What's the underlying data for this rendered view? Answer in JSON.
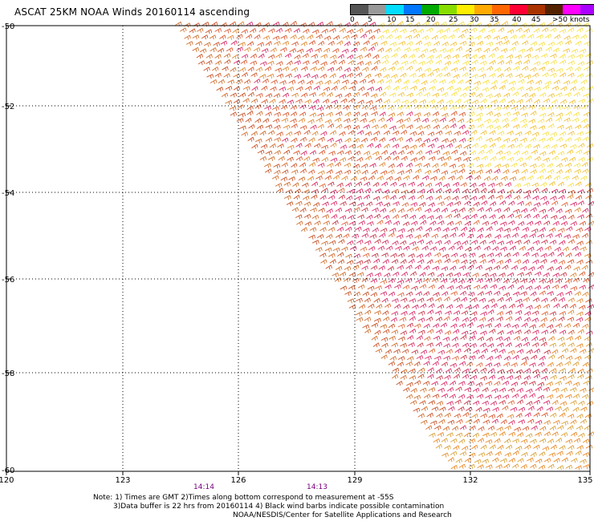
{
  "title": "ASCAT 25KM NOAA Winds 20160114 ascending",
  "legend": {
    "colors": [
      "#555555",
      "#999999",
      "#00ddff",
      "#0077ff",
      "#00aa00",
      "#88dd00",
      "#ffee00",
      "#ffaa00",
      "#ff6600",
      "#ff0033",
      "#aa3300",
      "#552200",
      "#ff00ff",
      "#aa00ff",
      "#5500aa"
    ],
    "labels": [
      "0",
      "5",
      "10",
      "15",
      "20",
      "25",
      "30",
      "35",
      "40",
      "45",
      ">50 knots"
    ]
  },
  "axes": {
    "lon_ticks": [
      "120",
      "123",
      "126",
      "129",
      "132",
      "135"
    ],
    "lat_ticks": [
      "-50",
      "-52",
      "-54",
      "-56",
      "-58",
      "-60"
    ]
  },
  "times": [
    "14:14",
    "14:13"
  ],
  "notes": {
    "line1": "Note: 1) Times are GMT 2)Times along bottom correspond to measurement at -55S",
    "line2": "3)Data buffer is 22 hrs from 20160114 4) Black wind barbs indicate possible contamination",
    "line3": "NOAA/NESDIS/Center for Satellite Applications and Research"
  },
  "wind_field": {
    "units": "knots",
    "lon_range": [
      120,
      135
    ],
    "lat_range": [
      -60,
      -50
    ]
  }
}
